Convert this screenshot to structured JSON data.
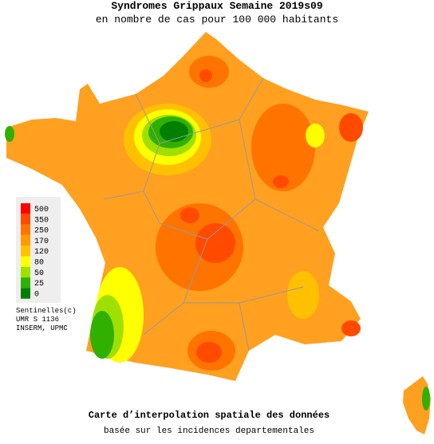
{
  "header": {
    "title": "Syndromes Grippaux Semaine 2019s09",
    "subtitle": "en nombre de cas pour 100 000 habitants"
  },
  "legend": {
    "items": [
      {
        "value": 500,
        "color": "#ff0000"
      },
      {
        "value": 350,
        "color": "#ff4a00"
      },
      {
        "value": 250,
        "color": "#ff7400"
      },
      {
        "value": 170,
        "color": "#ff9a00"
      },
      {
        "value": 120,
        "color": "#ffc000"
      },
      {
        "value": 80,
        "color": "#ffff00"
      },
      {
        "value": 50,
        "color": "#a0e000"
      },
      {
        "value": 25,
        "color": "#30b000"
      },
      {
        "value": 0,
        "color": "#008000"
      }
    ]
  },
  "credits": [
    "Sentinelles(c)",
    "UMR S 1136",
    "INSERM, UPMC"
  ],
  "footer": {
    "title": "Carte d’interpolation spatiale des données",
    "subtitle": "basée sur les incidences departementales"
  }
}
